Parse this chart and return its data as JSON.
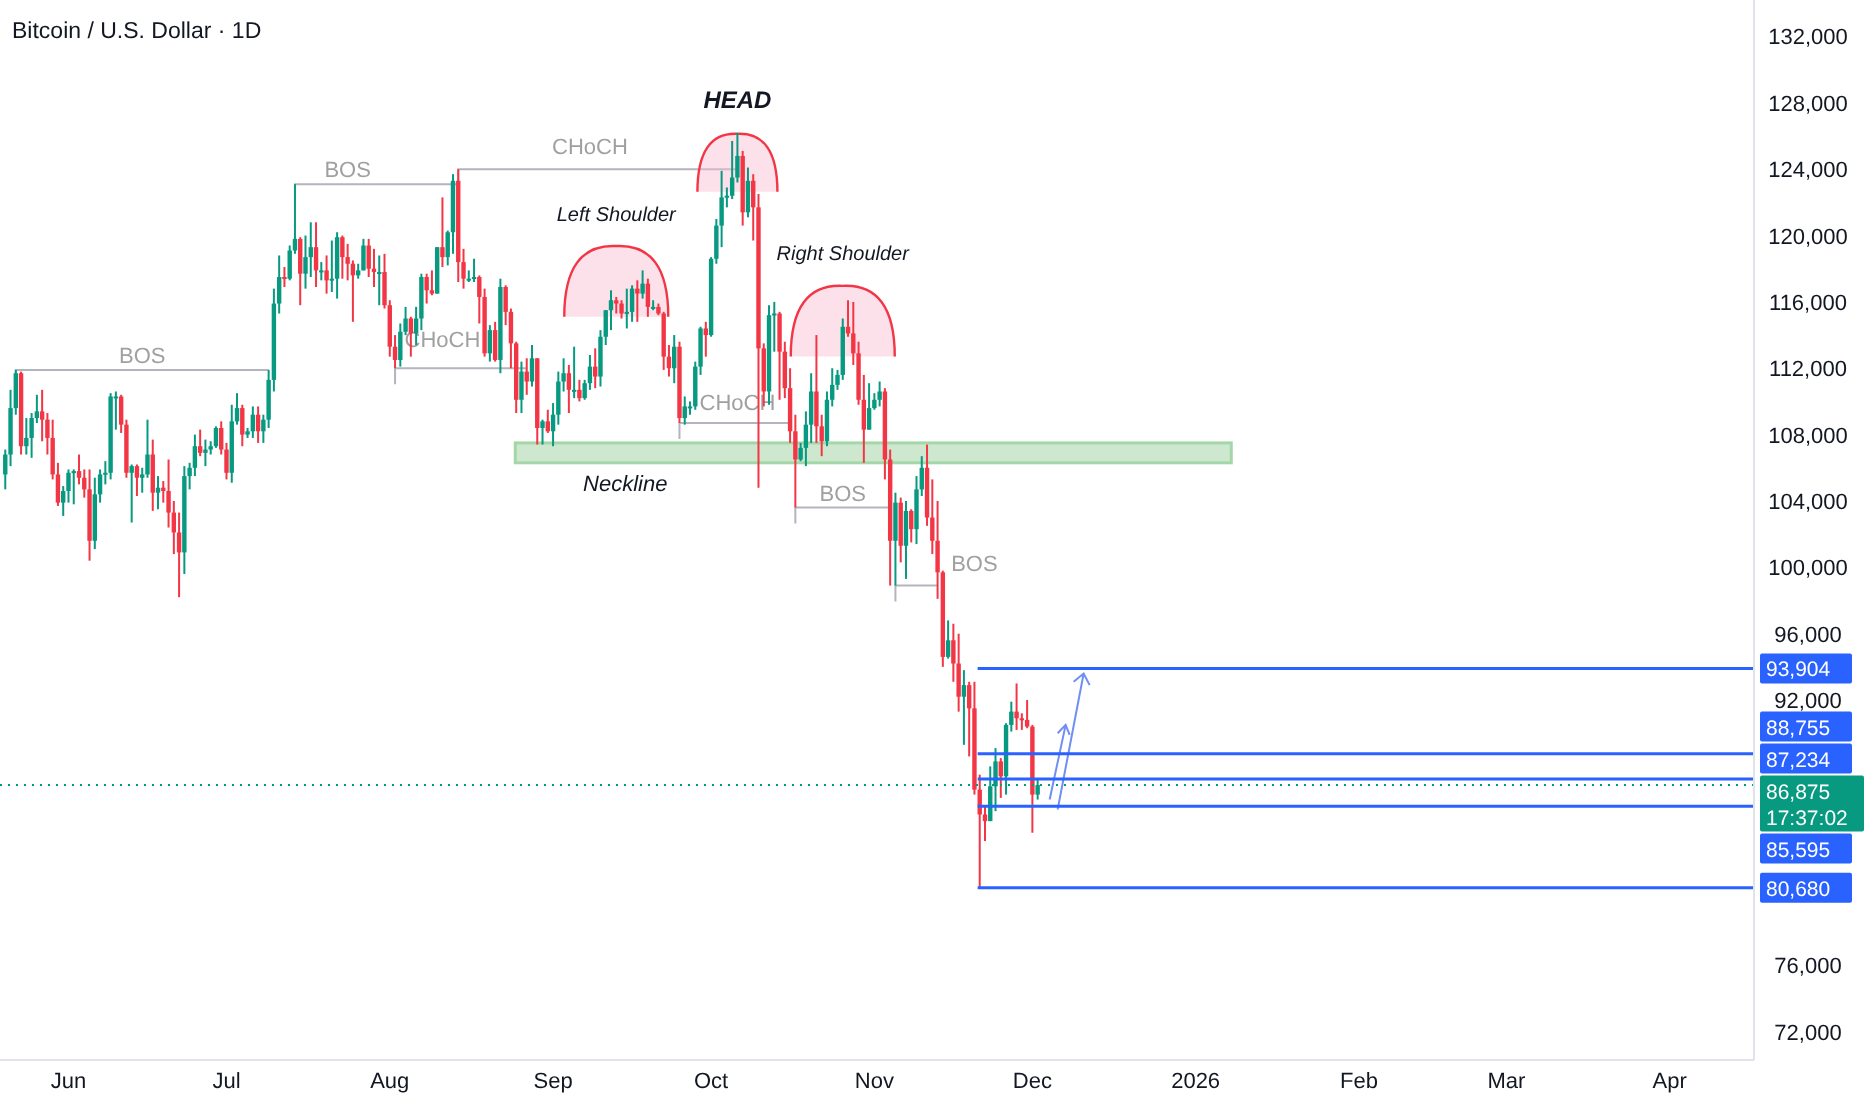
{
  "chart_data": {
    "type": "candlestick",
    "title": "Bitcoin / U.S. Dollar · 1D",
    "x": [
      "2025-05-20",
      "2025-05-21",
      "2025-05-22",
      "2025-05-23",
      "2025-05-24",
      "2025-05-25",
      "2025-05-26",
      "2025-05-27",
      "2025-05-28",
      "2025-05-29",
      "2025-05-30",
      "2025-05-31",
      "2025-06-01",
      "2025-06-02",
      "2025-06-03",
      "2025-06-04",
      "2025-06-05",
      "2025-06-06",
      "2025-06-07",
      "2025-06-08",
      "2025-06-09",
      "2025-06-10",
      "2025-06-11",
      "2025-06-12",
      "2025-06-13",
      "2025-06-14",
      "2025-06-15",
      "2025-06-16",
      "2025-06-17",
      "2025-06-18",
      "2025-06-19",
      "2025-06-20",
      "2025-06-21",
      "2025-06-22",
      "2025-06-23",
      "2025-06-24",
      "2025-06-25",
      "2025-06-26",
      "2025-06-27",
      "2025-06-28",
      "2025-06-29",
      "2025-06-30",
      "2025-07-01",
      "2025-07-02",
      "2025-07-03",
      "2025-07-04",
      "2025-07-05",
      "2025-07-06",
      "2025-07-07",
      "2025-07-08",
      "2025-07-09",
      "2025-07-10",
      "2025-07-11",
      "2025-07-12",
      "2025-07-13",
      "2025-07-14",
      "2025-07-15",
      "2025-07-16",
      "2025-07-17",
      "2025-07-18",
      "2025-07-19",
      "2025-07-20",
      "2025-07-21",
      "2025-07-22",
      "2025-07-23",
      "2025-07-24",
      "2025-07-25",
      "2025-07-26",
      "2025-07-27",
      "2025-07-28",
      "2025-07-29",
      "2025-07-30",
      "2025-07-31",
      "2025-08-01",
      "2025-08-02",
      "2025-08-03",
      "2025-08-04",
      "2025-08-05",
      "2025-08-06",
      "2025-08-07",
      "2025-08-08",
      "2025-08-09",
      "2025-08-10",
      "2025-08-11",
      "2025-08-12",
      "2025-08-13",
      "2025-08-14",
      "2025-08-15",
      "2025-08-16",
      "2025-08-17",
      "2025-08-18",
      "2025-08-19",
      "2025-08-20",
      "2025-08-21",
      "2025-08-22",
      "2025-08-23",
      "2025-08-24",
      "2025-08-25",
      "2025-08-26",
      "2025-08-27",
      "2025-08-28",
      "2025-08-29",
      "2025-08-30",
      "2025-08-31",
      "2025-09-01",
      "2025-09-02",
      "2025-09-03",
      "2025-09-04",
      "2025-09-05",
      "2025-09-06",
      "2025-09-07",
      "2025-09-08",
      "2025-09-09",
      "2025-09-10",
      "2025-09-11",
      "2025-09-12",
      "2025-09-13",
      "2025-09-14",
      "2025-09-15",
      "2025-09-16",
      "2025-09-17",
      "2025-09-18",
      "2025-09-19",
      "2025-09-20",
      "2025-09-21",
      "2025-09-22",
      "2025-09-23",
      "2025-09-24",
      "2025-09-25",
      "2025-09-26",
      "2025-09-27",
      "2025-09-28",
      "2025-09-29",
      "2025-09-30",
      "2025-10-01",
      "2025-10-02",
      "2025-10-03",
      "2025-10-04",
      "2025-10-05",
      "2025-10-06",
      "2025-10-07",
      "2025-10-08",
      "2025-10-09",
      "2025-10-10",
      "2025-10-11",
      "2025-10-12",
      "2025-10-13",
      "2025-10-14",
      "2025-10-15",
      "2025-10-16",
      "2025-10-17",
      "2025-10-18",
      "2025-10-19",
      "2025-10-20",
      "2025-10-21",
      "2025-10-22",
      "2025-10-23",
      "2025-10-24",
      "2025-10-25",
      "2025-10-26",
      "2025-10-27",
      "2025-10-28",
      "2025-10-29",
      "2025-10-30",
      "2025-10-31",
      "2025-11-01",
      "2025-11-02",
      "2025-11-03",
      "2025-11-04",
      "2025-11-05",
      "2025-11-06",
      "2025-11-07",
      "2025-11-08",
      "2025-11-09",
      "2025-11-10",
      "2025-11-11",
      "2025-11-12",
      "2025-11-13",
      "2025-11-14",
      "2025-11-15",
      "2025-11-16",
      "2025-11-17",
      "2025-11-18",
      "2025-11-19",
      "2025-11-20",
      "2025-11-21",
      "2025-11-22",
      "2025-11-23",
      "2025-11-24",
      "2025-11-25",
      "2025-11-26",
      "2025-11-27",
      "2025-11-28",
      "2025-11-29",
      "2025-11-30",
      "2025-12-01",
      "2025-12-02"
    ],
    "ohlc": [
      [
        105600,
        107100,
        104700,
        106800
      ],
      [
        106800,
        110700,
        106100,
        109600
      ],
      [
        109600,
        111900,
        109200,
        111700
      ],
      [
        111700,
        111800,
        106800,
        107300
      ],
      [
        107300,
        109000,
        106800,
        107800
      ],
      [
        107800,
        109300,
        106600,
        109000
      ],
      [
        109000,
        110400,
        108700,
        109400
      ],
      [
        109400,
        110700,
        107600,
        108900
      ],
      [
        108900,
        109300,
        106800,
        107800
      ],
      [
        107800,
        108900,
        105300,
        105600
      ],
      [
        105600,
        106300,
        103700,
        103900
      ],
      [
        103900,
        104900,
        103100,
        104600
      ],
      [
        104600,
        105900,
        103900,
        105700
      ],
      [
        105700,
        105900,
        103800,
        105800
      ],
      [
        105800,
        106800,
        105000,
        105400
      ],
      [
        105400,
        105900,
        104200,
        104700
      ],
      [
        104700,
        105900,
        100400,
        101600
      ],
      [
        101600,
        105400,
        101100,
        104400
      ],
      [
        104400,
        105900,
        103900,
        105600
      ],
      [
        105600,
        106400,
        105000,
        105700
      ],
      [
        105700,
        110500,
        105300,
        110300
      ],
      [
        110300,
        110600,
        108300,
        110300
      ],
      [
        110300,
        110400,
        108100,
        108600
      ],
      [
        108600,
        108900,
        105400,
        105700
      ],
      [
        105700,
        106200,
        102700,
        106100
      ],
      [
        106100,
        106200,
        104300,
        105400
      ],
      [
        105400,
        106000,
        104500,
        105600
      ],
      [
        105600,
        108900,
        105400,
        106800
      ],
      [
        106800,
        107700,
        103400,
        104500
      ],
      [
        104500,
        105500,
        103500,
        104800
      ],
      [
        104800,
        105200,
        103900,
        104600
      ],
      [
        104600,
        106500,
        102400,
        103300
      ],
      [
        103300,
        104000,
        100800,
        102100
      ],
      [
        102100,
        103300,
        98200,
        100900
      ],
      [
        100900,
        106100,
        99600,
        105500
      ],
      [
        105500,
        106300,
        104700,
        106000
      ],
      [
        106000,
        108000,
        105500,
        107300
      ],
      [
        107300,
        108300,
        106700,
        106900
      ],
      [
        106900,
        107700,
        106100,
        107100
      ],
      [
        107100,
        107600,
        106800,
        107300
      ],
      [
        107300,
        108500,
        107200,
        108400
      ],
      [
        108400,
        108800,
        106800,
        107100
      ],
      [
        107100,
        107500,
        105300,
        105700
      ],
      [
        105700,
        109800,
        105100,
        108800
      ],
      [
        108800,
        110500,
        108600,
        109600
      ],
      [
        109600,
        109800,
        107300,
        108000
      ],
      [
        108000,
        108400,
        107800,
        108200
      ],
      [
        108200,
        109700,
        107800,
        109200
      ],
      [
        109200,
        109700,
        107500,
        108200
      ],
      [
        108200,
        109200,
        107500,
        108900
      ],
      [
        108900,
        111900,
        108400,
        111300
      ],
      [
        111300,
        116800,
        110600,
        115900
      ],
      [
        115900,
        118800,
        115300,
        117500
      ],
      [
        117500,
        118100,
        116900,
        117400
      ],
      [
        117400,
        119400,
        117300,
        119100
      ],
      [
        119100,
        123100,
        118900,
        119800
      ],
      [
        119800,
        119900,
        115800,
        117700
      ],
      [
        117700,
        120000,
        116800,
        118700
      ],
      [
        118700,
        120800,
        117500,
        119300
      ],
      [
        119300,
        120800,
        116900,
        117900
      ],
      [
        117900,
        118400,
        117300,
        117900
      ],
      [
        117900,
        118800,
        116500,
        117300
      ],
      [
        117300,
        119700,
        116600,
        117400
      ],
      [
        117400,
        120200,
        116200,
        119900
      ],
      [
        119900,
        120000,
        117400,
        118700
      ],
      [
        118700,
        119500,
        117300,
        118300
      ],
      [
        118300,
        118500,
        114800,
        117600
      ],
      [
        117600,
        118300,
        117400,
        117900
      ],
      [
        117900,
        119800,
        117900,
        119400
      ],
      [
        119400,
        119800,
        117500,
        118000
      ],
      [
        118000,
        119200,
        116900,
        117800
      ],
      [
        117800,
        118800,
        115800,
        117800
      ],
      [
        117800,
        118900,
        115600,
        115800
      ],
      [
        115800,
        116100,
        112700,
        113300
      ],
      [
        113300,
        114000,
        112000,
        112500
      ],
      [
        112500,
        114700,
        112100,
        114200
      ],
      [
        114200,
        115700,
        114000,
        115000
      ],
      [
        115000,
        115100,
        112700,
        114100
      ],
      [
        114100,
        115700,
        113400,
        115000
      ],
      [
        115000,
        117700,
        114300,
        117500
      ],
      [
        117500,
        117700,
        115900,
        116700
      ],
      [
        116700,
        117900,
        116400,
        116500
      ],
      [
        116500,
        119300,
        116500,
        119300
      ],
      [
        119300,
        122300,
        118100,
        118700
      ],
      [
        118700,
        120300,
        118200,
        120200
      ],
      [
        120200,
        123700,
        118900,
        123300
      ],
      [
        123300,
        124000,
        117200,
        118400
      ],
      [
        118400,
        119200,
        116800,
        117400
      ],
      [
        117400,
        117900,
        117200,
        117400
      ],
      [
        117400,
        118600,
        117200,
        117500
      ],
      [
        117500,
        117600,
        114700,
        116300
      ],
      [
        116300,
        116800,
        112700,
        112900
      ],
      [
        112900,
        114600,
        112400,
        114300
      ],
      [
        114300,
        114800,
        112400,
        112500
      ],
      [
        112500,
        117400,
        111700,
        116900
      ],
      [
        116900,
        117000,
        114600,
        115400
      ],
      [
        115400,
        115600,
        112000,
        113500
      ],
      [
        113500,
        113600,
        109300,
        110100
      ],
      [
        110100,
        112400,
        109300,
        111800
      ],
      [
        111800,
        112600,
        110400,
        111200
      ],
      [
        111200,
        113400,
        110900,
        112600
      ],
      [
        112600,
        112600,
        107400,
        108400
      ],
      [
        108400,
        108900,
        107400,
        108800
      ],
      [
        108800,
        109500,
        108100,
        108200
      ],
      [
        108200,
        109900,
        107300,
        109200
      ],
      [
        109200,
        111800,
        108600,
        111200
      ],
      [
        111200,
        112600,
        110600,
        111700
      ],
      [
        111700,
        112200,
        109300,
        110700
      ],
      [
        110700,
        113300,
        110200,
        110700
      ],
      [
        110700,
        111300,
        110000,
        110200
      ],
      [
        110200,
        111300,
        110100,
        111100
      ],
      [
        111100,
        112800,
        110700,
        112100
      ],
      [
        112100,
        113200,
        110800,
        111500
      ],
      [
        111500,
        114300,
        110900,
        113900
      ],
      [
        113900,
        115500,
        113400,
        115500
      ],
      [
        115500,
        116700,
        114300,
        116100
      ],
      [
        116100,
        116300,
        115300,
        115900
      ],
      [
        115900,
        116100,
        115000,
        115300
      ],
      [
        115300,
        116800,
        114400,
        115400
      ],
      [
        115400,
        117000,
        114800,
        116800
      ],
      [
        116800,
        117300,
        114800,
        116500
      ],
      [
        116500,
        117900,
        116200,
        117100
      ],
      [
        117100,
        117400,
        115100,
        115700
      ],
      [
        115700,
        116100,
        115500,
        115700
      ],
      [
        115700,
        115900,
        115200,
        115300
      ],
      [
        115300,
        115400,
        111900,
        112700
      ],
      [
        112700,
        113400,
        111500,
        112000
      ],
      [
        112000,
        114000,
        111100,
        113300
      ],
      [
        113300,
        113600,
        108700,
        109000
      ],
      [
        109000,
        110300,
        108600,
        109700
      ],
      [
        109700,
        110000,
        109200,
        109700
      ],
      [
        109700,
        112400,
        109500,
        112100
      ],
      [
        112100,
        114500,
        111600,
        114400
      ],
      [
        114400,
        114800,
        112700,
        114000
      ],
      [
        114000,
        118700,
        113900,
        118600
      ],
      [
        118600,
        121000,
        118300,
        120600
      ],
      [
        120600,
        123900,
        119300,
        122300
      ],
      [
        122300,
        122900,
        121700,
        122400
      ],
      [
        122400,
        125700,
        122200,
        123500
      ],
      [
        123500,
        126200,
        123200,
        124800
      ],
      [
        124800,
        125100,
        120600,
        121400
      ],
      [
        121400,
        124100,
        121100,
        123300
      ],
      [
        123300,
        123700,
        119700,
        121700
      ],
      [
        121700,
        122500,
        104800,
        113200
      ],
      [
        113200,
        113500,
        109700,
        110600
      ],
      [
        110600,
        115800,
        109800,
        115200
      ],
      [
        115200,
        116000,
        113000,
        115300
      ],
      [
        115300,
        115400,
        110100,
        113000
      ],
      [
        113000,
        113600,
        110200,
        110800
      ],
      [
        110800,
        112000,
        107500,
        108200
      ],
      [
        108200,
        109200,
        103600,
        106500
      ],
      [
        106500,
        107500,
        106400,
        107200
      ],
      [
        107200,
        109400,
        106100,
        108600
      ],
      [
        108600,
        111700,
        107500,
        110600
      ],
      [
        110600,
        114000,
        107500,
        108500
      ],
      [
        108500,
        109200,
        106700,
        107600
      ],
      [
        107600,
        110600,
        107300,
        110100
      ],
      [
        110100,
        112000,
        109700,
        111000
      ],
      [
        111000,
        111900,
        110700,
        111600
      ],
      [
        111600,
        115000,
        111300,
        114500
      ],
      [
        114500,
        116100,
        113900,
        114100
      ],
      [
        114100,
        116000,
        112200,
        112900
      ],
      [
        112900,
        113600,
        109800,
        110100
      ],
      [
        110100,
        111600,
        106300,
        108300
      ],
      [
        108300,
        111100,
        108300,
        109600
      ],
      [
        109600,
        110500,
        109500,
        110100
      ],
      [
        110100,
        111200,
        109700,
        110600
      ],
      [
        110600,
        110800,
        105300,
        106500
      ],
      [
        106500,
        107100,
        98900,
        101600
      ],
      [
        101600,
        104500,
        98900,
        103900
      ],
      [
        103900,
        104200,
        100300,
        101300
      ],
      [
        101300,
        104000,
        99300,
        103400
      ],
      [
        103400,
        103500,
        101500,
        102300
      ],
      [
        102300,
        105500,
        101400,
        104700
      ],
      [
        104700,
        106700,
        104300,
        106000
      ],
      [
        106000,
        107400,
        102500,
        103000
      ],
      [
        103000,
        105300,
        100800,
        101600
      ],
      [
        101600,
        104000,
        98100,
        99700
      ],
      [
        99700,
        99800,
        94000,
        94600
      ],
      [
        94600,
        96800,
        94500,
        95600
      ],
      [
        95600,
        96600,
        93100,
        94200
      ],
      [
        94200,
        96000,
        91300,
        92200
      ],
      [
        92200,
        93800,
        89300,
        92900
      ],
      [
        92900,
        93100,
        88600,
        91500
      ],
      [
        91500,
        93100,
        86300,
        86600
      ],
      [
        86600,
        87500,
        80680,
        85100
      ],
      [
        85100,
        85600,
        83500,
        84700
      ],
      [
        84700,
        88000,
        84700,
        86800
      ],
      [
        86800,
        89100,
        85300,
        88300
      ],
      [
        88300,
        88500,
        86100,
        87400
      ],
      [
        87400,
        90600,
        86300,
        90500
      ],
      [
        90500,
        91900,
        90100,
        91300
      ],
      [
        91300,
        93000,
        90200,
        90900
      ],
      [
        90900,
        91200,
        90200,
        90800
      ],
      [
        90800,
        92000,
        90300,
        90400
      ],
      [
        90400,
        90500,
        84000,
        86300
      ],
      [
        86300,
        87300,
        86000,
        86875
      ]
    ],
    "xlim": [
      "2025-05-19",
      "2026-04-17"
    ],
    "xticks": [
      {
        "value": "2025-06-01",
        "label": "Jun"
      },
      {
        "value": "2025-07-01",
        "label": "Jul"
      },
      {
        "value": "2025-08-01",
        "label": "Aug"
      },
      {
        "value": "2025-09-01",
        "label": "Sep"
      },
      {
        "value": "2025-10-01",
        "label": "Oct"
      },
      {
        "value": "2025-11-01",
        "label": "Nov"
      },
      {
        "value": "2025-12-01",
        "label": "Dec"
      },
      {
        "value": "2026-01-01",
        "label": "2026"
      },
      {
        "value": "2026-02-01",
        "label": "Feb"
      },
      {
        "value": "2026-03-01",
        "label": "Mar"
      },
      {
        "value": "2026-04-01",
        "label": "Apr"
      }
    ],
    "ylim": [
      70300,
      134200
    ],
    "yticks": [
      {
        "value": 72000,
        "label": "72,000"
      },
      {
        "value": 76000,
        "label": "76,000"
      },
      {
        "value": 92000,
        "label": "92,000"
      },
      {
        "value": 96000,
        "label": "96,000"
      },
      {
        "value": 100000,
        "label": "100,000"
      },
      {
        "value": 104000,
        "label": "104,000"
      },
      {
        "value": 108000,
        "label": "108,000"
      },
      {
        "value": 112000,
        "label": "112,000"
      },
      {
        "value": 116000,
        "label": "116,000"
      },
      {
        "value": 120000,
        "label": "120,000"
      },
      {
        "value": 124000,
        "label": "124,000"
      },
      {
        "value": 128000,
        "label": "128,000"
      },
      {
        "value": 132000,
        "label": "132,000"
      }
    ],
    "grid": false,
    "ref_lines": [
      {
        "axis": "y",
        "value": 93904,
        "label": "93,904",
        "color": "#2962ff",
        "line_style": "solid"
      },
      {
        "axis": "y",
        "value": 88755,
        "label": "88,755",
        "color": "#2962ff",
        "line_style": "solid"
      },
      {
        "axis": "y",
        "value": 87234,
        "label": "87,234",
        "color": "#2962ff",
        "line_style": "solid"
      },
      {
        "axis": "y",
        "value": 85595,
        "label": "85,595",
        "color": "#2962ff",
        "line_style": "solid"
      },
      {
        "axis": "y",
        "value": 80680,
        "label": "80,680",
        "color": "#2962ff",
        "line_style": "solid"
      },
      {
        "axis": "y",
        "value": 86875,
        "label": "86,875",
        "color": "#089981",
        "line_style": "dotted"
      }
    ],
    "bands": [
      {
        "axis": "y",
        "from": 106300,
        "to": 107500,
        "label": "Neckline",
        "color": "#a5d6a7"
      }
    ],
    "legend": "right",
    "annotations": [
      "HEAD",
      "Left Shoulder",
      "Right Shoulder",
      "BOS",
      "BOS",
      "CHoCH",
      "CHoCH",
      "CHoCH",
      "BOS",
      "BOS",
      "17:37:02"
    ]
  }
}
